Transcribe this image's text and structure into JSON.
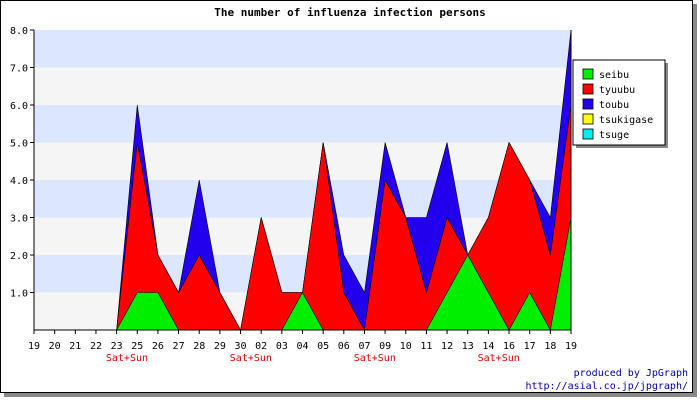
{
  "chart_data": {
    "type": "area",
    "title": "The number of influenza infection persons",
    "xlabel": "",
    "ylabel": "",
    "ylim": [
      0,
      8
    ],
    "y_ticks": [
      "1.0",
      "2.0",
      "3.0",
      "4.0",
      "5.0",
      "6.0",
      "7.0",
      "8.0"
    ],
    "stacked": false,
    "grid": "alternating horizontal bands",
    "legend_position": "right",
    "categories": [
      "19",
      "20",
      "21",
      "22",
      "23",
      "25",
      "26",
      "27",
      "28",
      "29",
      "30",
      "02",
      "03",
      "04",
      "05",
      "06",
      "07",
      "09",
      "10",
      "11",
      "12",
      "13",
      "14",
      "16",
      "17",
      "18",
      "19"
    ],
    "weekend_labels": [
      {
        "after_index": 4,
        "text": "Sat+Sun"
      },
      {
        "after_index": 10,
        "text": "Sat+Sun"
      },
      {
        "after_index": 16,
        "text": "Sat+Sun"
      },
      {
        "after_index": 22,
        "text": "Sat+Sun"
      }
    ],
    "series": [
      {
        "name": "toubu",
        "color": "#2200ee",
        "values": [
          0,
          0,
          0,
          0,
          0,
          6,
          2,
          1,
          4,
          1,
          0,
          3,
          1,
          1,
          5,
          2,
          1,
          5,
          3,
          3,
          5,
          2,
          3,
          5,
          4,
          3,
          8
        ]
      },
      {
        "name": "tyuubu",
        "color": "#ff0000",
        "values": [
          0,
          0,
          0,
          0,
          0,
          5,
          2,
          1,
          2,
          1,
          0,
          3,
          1,
          1,
          5,
          1,
          0,
          4,
          3,
          1,
          3,
          2,
          3,
          5,
          4,
          2,
          6
        ]
      },
      {
        "name": "seibu",
        "color": "#00ee00",
        "values": [
          0,
          0,
          0,
          0,
          0,
          1,
          1,
          0,
          0,
          0,
          0,
          0,
          0,
          1,
          0,
          0,
          0,
          0,
          0,
          0,
          1,
          2,
          1,
          0,
          1,
          0,
          3
        ]
      },
      {
        "name": "tsukigase",
        "color": "#ffff00",
        "values": [
          0,
          0,
          0,
          0,
          0,
          0,
          0,
          0,
          0,
          0,
          0,
          0,
          0,
          0,
          0,
          0,
          0,
          0,
          0,
          0,
          0,
          0,
          0,
          0,
          0,
          0,
          0
        ]
      },
      {
        "name": "tsuge",
        "color": "#00eeee",
        "values": [
          0,
          0,
          0,
          0,
          0,
          0,
          0,
          0,
          0,
          0,
          0,
          0,
          0,
          0,
          0,
          0,
          0,
          0,
          0,
          0,
          0,
          0,
          0,
          0,
          0,
          0,
          0
        ]
      }
    ],
    "legend": [
      {
        "name": "seibu",
        "color": "#00ee00"
      },
      {
        "name": "tyuubu",
        "color": "#ff0000"
      },
      {
        "name": "toubu",
        "color": "#2200ee"
      },
      {
        "name": "tsukigase",
        "color": "#ffff00"
      },
      {
        "name": "tsuge",
        "color": "#00eeee"
      }
    ]
  },
  "credit": {
    "line1": "produced by JpGraph",
    "line2": "http://asial.co.jp/jpgraph/"
  }
}
